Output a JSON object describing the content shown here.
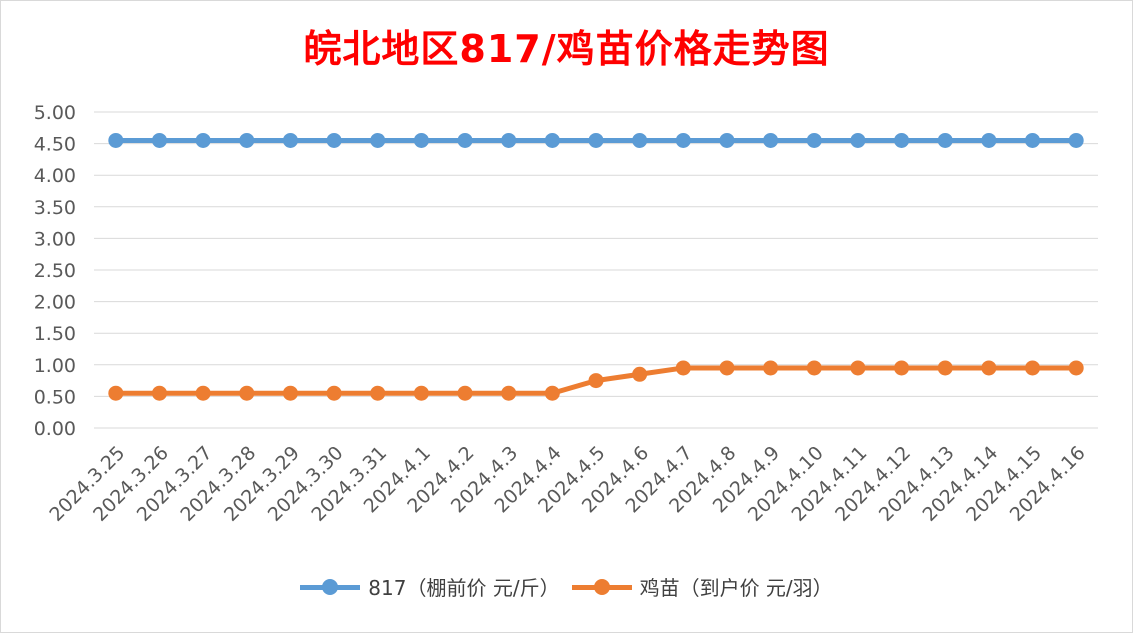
{
  "chart_data": {
    "type": "line",
    "title": "皖北地区817/鸡苗价格走势图",
    "xlabel": "",
    "ylabel": "",
    "ylim": [
      0,
      5
    ],
    "y_ticks": [
      "0.00",
      "0.50",
      "1.00",
      "1.50",
      "2.00",
      "2.50",
      "3.00",
      "3.50",
      "4.00",
      "4.50",
      "5.00"
    ],
    "grid": true,
    "legend_position": "bottom",
    "categories": [
      "2024.3.25",
      "2024.3.26",
      "2024.3.27",
      "2024.3.28",
      "2024.3.29",
      "2024.3.30",
      "2024.3.31",
      "2024.4.1",
      "2024.4.2",
      "2024.4.3",
      "2024.4.4",
      "2024.4.5",
      "2024.4.6",
      "2024.4.7",
      "2024.4.8",
      "2024.4.9",
      "2024.4.10",
      "2024.4.11",
      "2024.4.12",
      "2024.4.13",
      "2024.4.14",
      "2024.4.15",
      "2024.4.16"
    ],
    "series": [
      {
        "name": "817（棚前价 元/斤）",
        "color": "#5b9bd5",
        "values": [
          4.55,
          4.55,
          4.55,
          4.55,
          4.55,
          4.55,
          4.55,
          4.55,
          4.55,
          4.55,
          4.55,
          4.55,
          4.55,
          4.55,
          4.55,
          4.55,
          4.55,
          4.55,
          4.55,
          4.55,
          4.55,
          4.55,
          4.55
        ]
      },
      {
        "name": "鸡苗（到户价 元/羽）",
        "color": "#ed7d31",
        "values": [
          0.55,
          0.55,
          0.55,
          0.55,
          0.55,
          0.55,
          0.55,
          0.55,
          0.55,
          0.55,
          0.55,
          0.75,
          0.85,
          0.95,
          0.95,
          0.95,
          0.95,
          0.95,
          0.95,
          0.95,
          0.95,
          0.95,
          0.95
        ]
      }
    ]
  }
}
